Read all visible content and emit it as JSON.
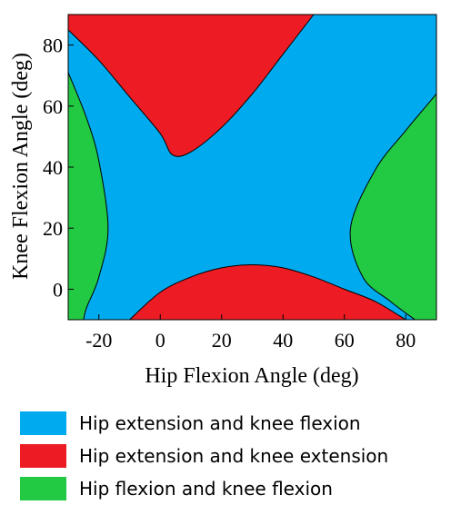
{
  "chart_data": {
    "type": "contour-region",
    "xlabel": "Hip Flexion Angle (deg)",
    "ylabel": "Knee Flexion Angle (deg)",
    "xlim": [
      -30,
      90
    ],
    "ylim": [
      -10,
      90
    ],
    "xticks": [
      -20,
      0,
      20,
      40,
      60,
      80
    ],
    "yticks": [
      0,
      20,
      40,
      60,
      80
    ],
    "grid": false,
    "legend_position": "below",
    "colors": {
      "blue": "#00aaee",
      "red": "#ed1c24",
      "green": "#22c943"
    },
    "regions": [
      {
        "name": "Hip extension and knee flexion",
        "color": "#00aaee",
        "role": "background"
      },
      {
        "name": "Hip extension and knee extension",
        "color": "#ed1c24",
        "boundary": [
          [
            -30,
            85
          ],
          [
            -20,
            75
          ],
          [
            -10,
            63
          ],
          [
            0,
            51
          ],
          [
            4,
            44
          ],
          [
            10,
            45
          ],
          [
            20,
            53
          ],
          [
            30,
            64
          ],
          [
            40,
            77
          ],
          [
            50,
            90
          ]
        ],
        "closure": "top"
      },
      {
        "name": "Hip extension and knee extension",
        "color": "#ed1c24",
        "boundary": [
          [
            -10,
            -10
          ],
          [
            0,
            -1
          ],
          [
            10,
            4
          ],
          [
            20,
            7
          ],
          [
            30,
            8
          ],
          [
            40,
            7
          ],
          [
            50,
            4
          ],
          [
            60,
            0
          ],
          [
            70,
            -4
          ],
          [
            80,
            -10
          ]
        ],
        "closure": "bottom"
      },
      {
        "name": "Hip flexion and knee flexion",
        "color": "#22c943",
        "boundary": [
          [
            -30,
            71
          ],
          [
            -24,
            56
          ],
          [
            -20,
            42
          ],
          [
            -17,
            20
          ],
          [
            -20,
            4
          ],
          [
            -24,
            -6
          ],
          [
            -25,
            -10
          ]
        ],
        "closure": "left"
      },
      {
        "name": "Hip flexion and knee flexion",
        "color": "#22c943",
        "boundary": [
          [
            90,
            64
          ],
          [
            80,
            52
          ],
          [
            70,
            39
          ],
          [
            62,
            20
          ],
          [
            66,
            4
          ],
          [
            75,
            -4
          ],
          [
            83,
            -10
          ]
        ],
        "closure": "right"
      }
    ]
  },
  "legend": {
    "items": [
      {
        "label": "Hip extension and knee flexion",
        "color": "#00aaee"
      },
      {
        "label": "Hip extension and knee extension",
        "color": "#ed1c24"
      },
      {
        "label": "Hip flexion and knee flexion",
        "color": "#22c943"
      }
    ]
  }
}
